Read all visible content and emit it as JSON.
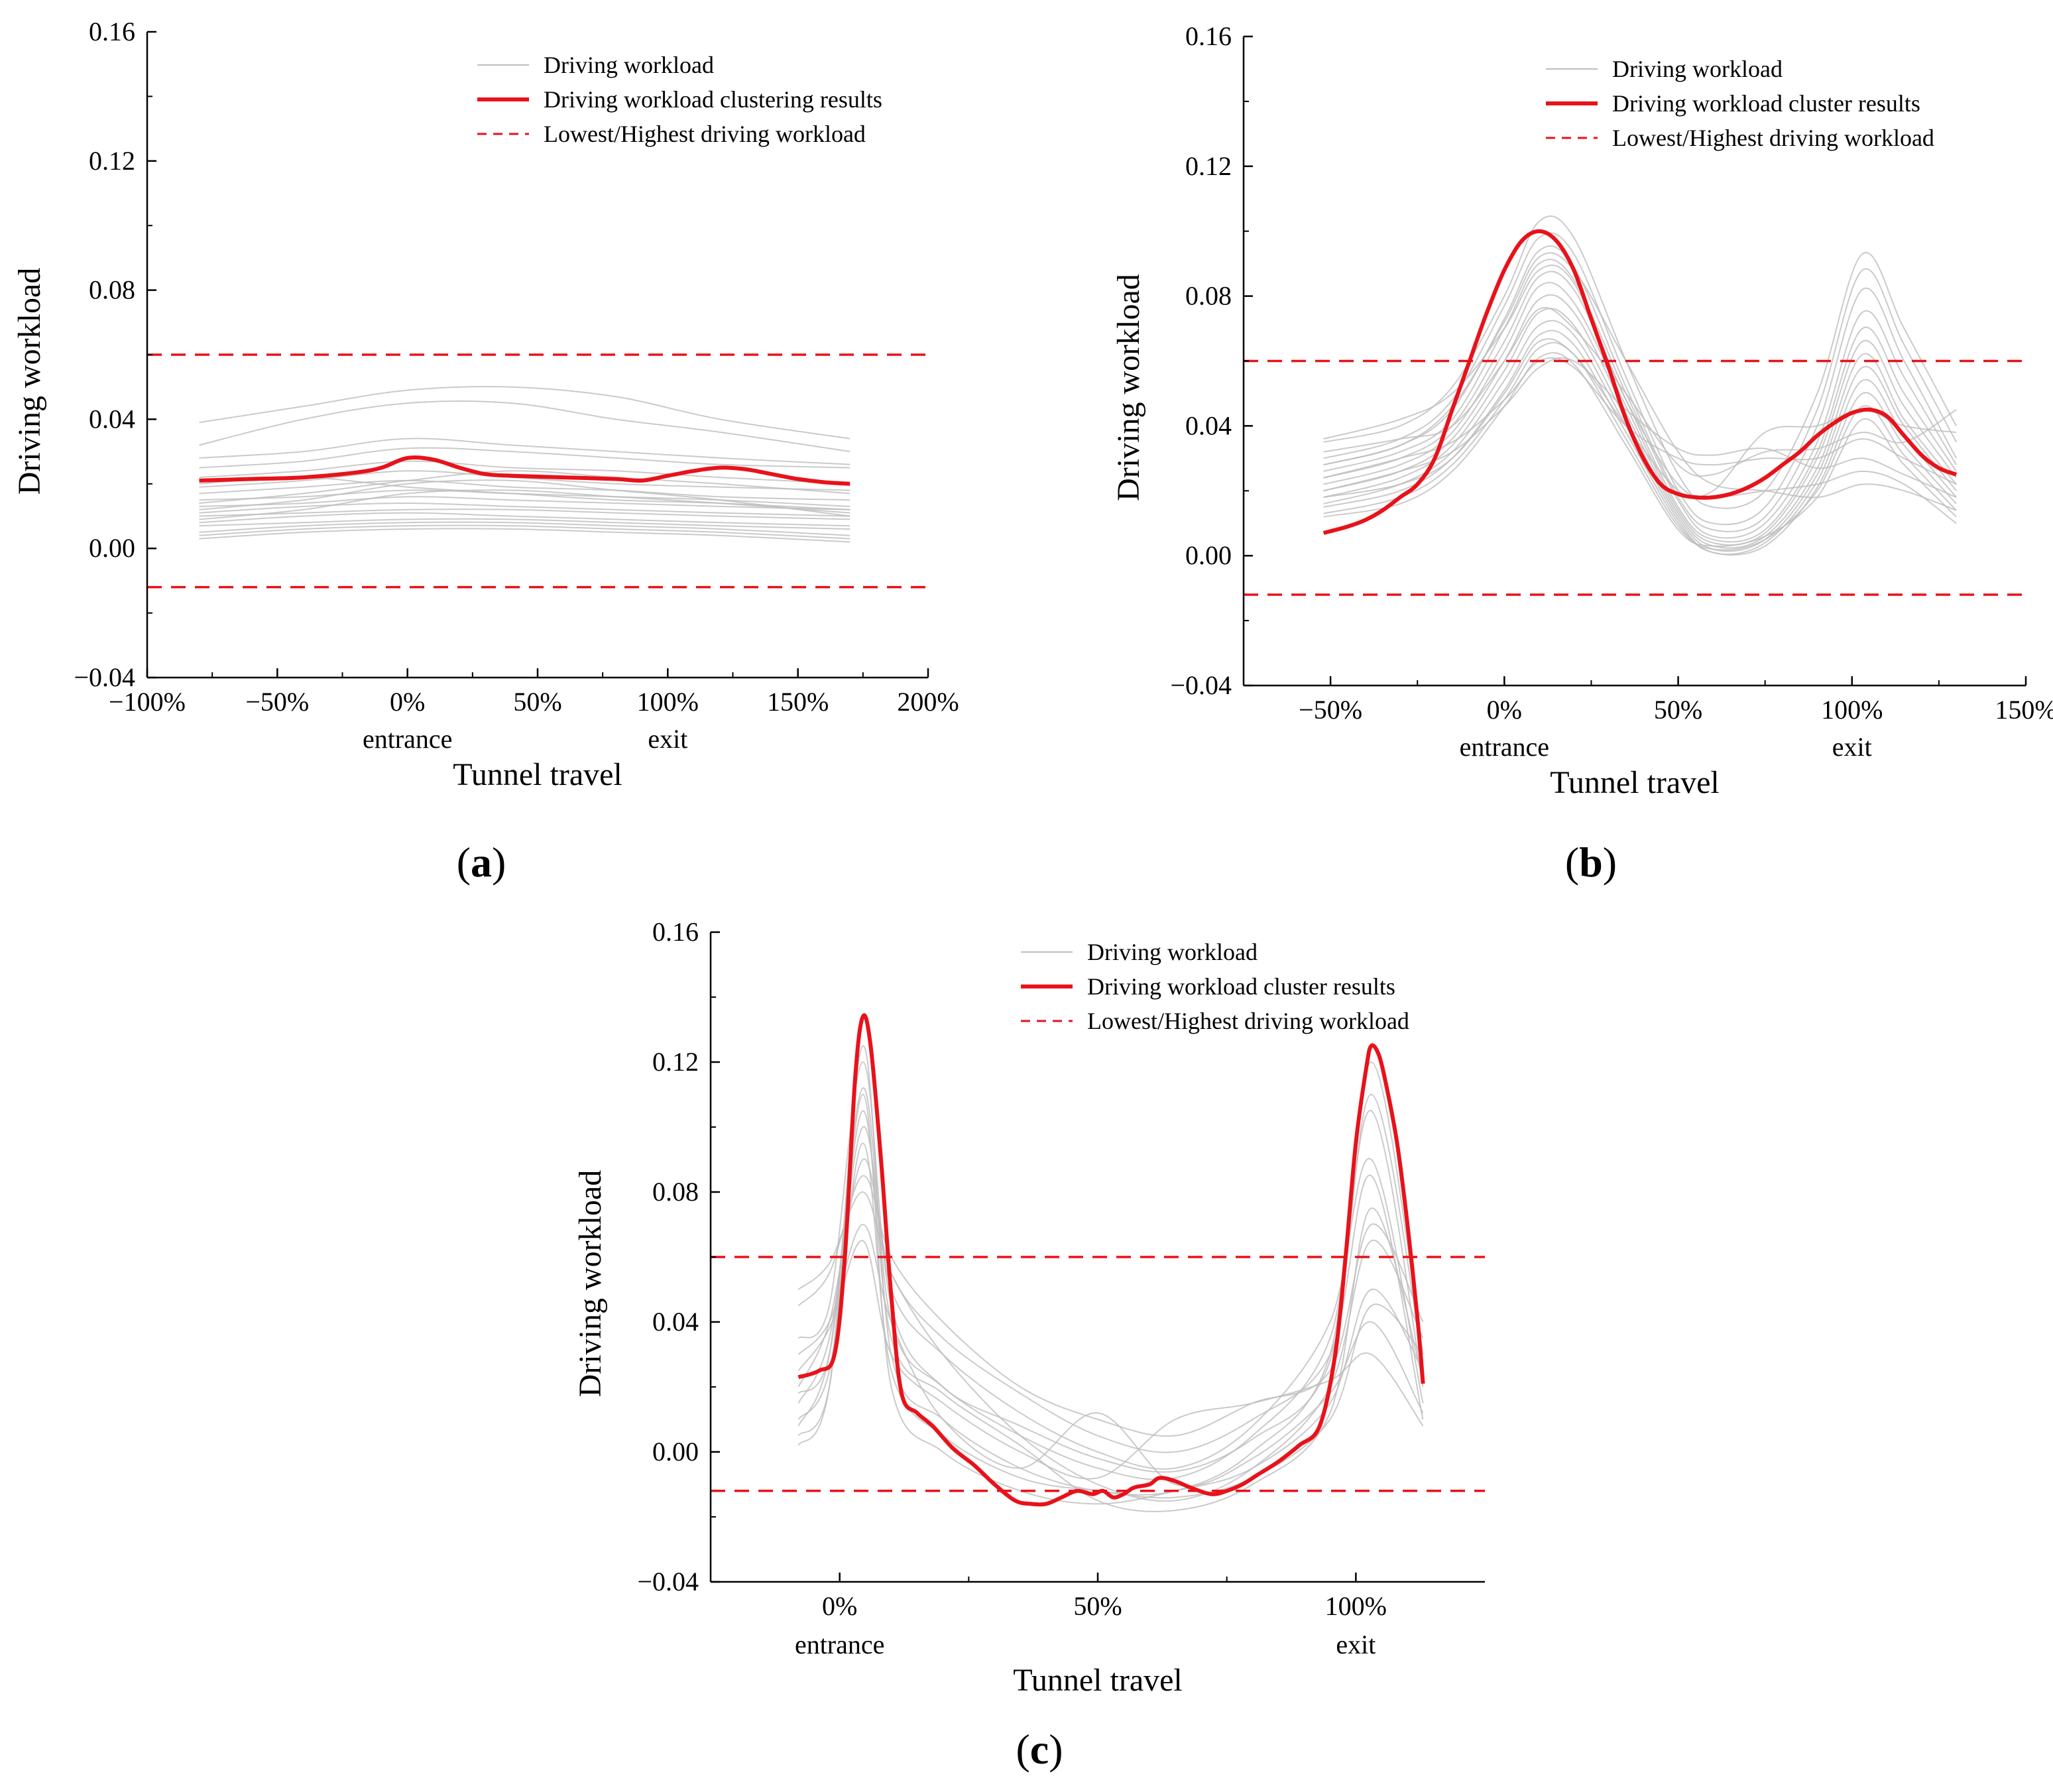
{
  "figure": {
    "panels": [
      {
        "prefix": "(",
        "letter": "a",
        "suffix": ")"
      },
      {
        "prefix": "(",
        "letter": "b",
        "suffix": ")"
      },
      {
        "prefix": "(",
        "letter": "c",
        "suffix": ")"
      }
    ]
  },
  "colors": {
    "cluster": "#e8121a",
    "threshold": "#e8121a",
    "individual": "#bdbdbd",
    "axis": "#000000"
  },
  "chart_data": [
    {
      "type": "line",
      "panel": "a",
      "xlabel": "Tunnel travel",
      "ylabel": "Driving workload",
      "xlim": [
        -100,
        200
      ],
      "ylim": [
        -0.04,
        0.16
      ],
      "xticks": [
        -100,
        -50,
        0,
        50,
        100,
        150,
        200
      ],
      "xtick_labels": [
        "−100%",
        "−50%",
        "0%",
        "50%",
        "100%",
        "150%",
        "200%"
      ],
      "yticks": [
        -0.04,
        0.0,
        0.04,
        0.08,
        0.12,
        0.16
      ],
      "ytick_labels": [
        "−0.04",
        "0.00",
        "0.04",
        "0.08",
        "0.12",
        "0.16"
      ],
      "annotations": [
        {
          "x": 0,
          "text": "entrance"
        },
        {
          "x": 100,
          "text": "exit"
        }
      ],
      "legend": [
        "Driving workload",
        "Driving workload clustering results",
        "Lowest/Highest driving workload"
      ],
      "thresholds": {
        "high": 0.06,
        "low": -0.012
      },
      "cluster": {
        "name": "Driving workload clustering results",
        "x": [
          -80,
          -60,
          -40,
          -20,
          -10,
          0,
          10,
          20,
          30,
          40,
          60,
          80,
          90,
          100,
          110,
          120,
          130,
          140,
          150,
          160,
          170
        ],
        "y": [
          0.021,
          0.0215,
          0.022,
          0.0235,
          0.025,
          0.028,
          0.0275,
          0.025,
          0.023,
          0.0225,
          0.022,
          0.0215,
          0.021,
          0.0225,
          0.024,
          0.025,
          0.0245,
          0.023,
          0.0215,
          0.0205,
          0.02
        ]
      },
      "individual": {
        "name": "Driving workload",
        "x": [
          -80,
          -40,
          0,
          40,
          80,
          120,
          170
        ],
        "y": [
          [
            0.039,
            0.044,
            0.049,
            0.05,
            0.047,
            0.04,
            0.034
          ],
          [
            0.032,
            0.04,
            0.045,
            0.045,
            0.04,
            0.036,
            0.03
          ],
          [
            0.028,
            0.03,
            0.034,
            0.032,
            0.03,
            0.028,
            0.026
          ],
          [
            0.025,
            0.027,
            0.031,
            0.03,
            0.028,
            0.026,
            0.025
          ],
          [
            0.022,
            0.024,
            0.027,
            0.025,
            0.024,
            0.022,
            0.02
          ],
          [
            0.019,
            0.021,
            0.024,
            0.022,
            0.02,
            0.019,
            0.018
          ],
          [
            0.017,
            0.019,
            0.021,
            0.019,
            0.018,
            0.016,
            0.015
          ],
          [
            0.015,
            0.016,
            0.018,
            0.017,
            0.016,
            0.015,
            0.013
          ],
          [
            0.013,
            0.014,
            0.016,
            0.015,
            0.014,
            0.013,
            0.012
          ],
          [
            0.011,
            0.013,
            0.014,
            0.013,
            0.012,
            0.011,
            0.01
          ],
          [
            0.01,
            0.011,
            0.012,
            0.012,
            0.011,
            0.01,
            0.009
          ],
          [
            0.008,
            0.01,
            0.011,
            0.01,
            0.009,
            0.008,
            0.007
          ],
          [
            0.007,
            0.008,
            0.009,
            0.009,
            0.008,
            0.007,
            0.006
          ],
          [
            0.005,
            0.007,
            0.008,
            0.008,
            0.007,
            0.006,
            0.004
          ],
          [
            0.004,
            0.006,
            0.007,
            0.007,
            0.006,
            0.005,
            0.003
          ],
          [
            0.003,
            0.005,
            0.006,
            0.006,
            0.005,
            0.004,
            0.002
          ],
          [
            0.012,
            0.015,
            0.02,
            0.021,
            0.018,
            0.015,
            0.01
          ],
          [
            0.009,
            0.012,
            0.017,
            0.018,
            0.016,
            0.014,
            0.011
          ],
          [
            0.02,
            0.022,
            0.019,
            0.017,
            0.015,
            0.014,
            0.012
          ],
          [
            0.014,
            0.017,
            0.021,
            0.024,
            0.022,
            0.02,
            0.017
          ]
        ]
      }
    },
    {
      "type": "line",
      "panel": "b",
      "xlabel": "Tunnel travel",
      "ylabel": "Driving workload",
      "xlim": [
        -75,
        150
      ],
      "ylim": [
        -0.04,
        0.16
      ],
      "xticks": [
        -50,
        0,
        50,
        100,
        150
      ],
      "xtick_labels": [
        "−50%",
        "0%",
        "50%",
        "100%",
        "150%"
      ],
      "yticks": [
        -0.04,
        0.0,
        0.04,
        0.08,
        0.12,
        0.16
      ],
      "ytick_labels": [
        "−0.04",
        "0.00",
        "0.04",
        "0.08",
        "0.12",
        "0.16"
      ],
      "annotations": [
        {
          "x": 0,
          "text": "entrance"
        },
        {
          "x": 100,
          "text": "exit"
        }
      ],
      "legend": [
        "Driving workload",
        "Driving workload cluster results",
        "Lowest/Highest driving workload"
      ],
      "thresholds": {
        "high": 0.06,
        "low": -0.012
      },
      "cluster": {
        "name": "Driving workload cluster results",
        "x": [
          -52,
          -45,
          -40,
          -35,
          -30,
          -25,
          -20,
          -15,
          -10,
          -5,
          0,
          5,
          10,
          15,
          20,
          25,
          30,
          35,
          40,
          45,
          50,
          55,
          60,
          65,
          70,
          75,
          80,
          85,
          90,
          95,
          100,
          105,
          110,
          115,
          120,
          125,
          130
        ],
        "y": [
          0.007,
          0.009,
          0.011,
          0.014,
          0.018,
          0.022,
          0.03,
          0.045,
          0.06,
          0.075,
          0.088,
          0.097,
          0.1,
          0.097,
          0.088,
          0.073,
          0.058,
          0.042,
          0.03,
          0.022,
          0.019,
          0.018,
          0.018,
          0.019,
          0.021,
          0.024,
          0.028,
          0.032,
          0.037,
          0.041,
          0.044,
          0.045,
          0.043,
          0.037,
          0.031,
          0.027,
          0.025
        ]
      },
      "individual": {
        "name": "Driving workload",
        "x": [
          -52,
          -30,
          -15,
          0,
          10,
          20,
          35,
          50,
          60,
          75,
          90,
          103,
          115,
          130
        ],
        "y": [
          [
            0.035,
            0.04,
            0.052,
            0.08,
            0.103,
            0.098,
            0.06,
            0.025,
            0.015,
            0.02,
            0.05,
            0.093,
            0.07,
            0.04
          ],
          [
            0.03,
            0.036,
            0.048,
            0.077,
            0.098,
            0.093,
            0.055,
            0.02,
            0.01,
            0.015,
            0.045,
            0.088,
            0.065,
            0.035
          ],
          [
            0.028,
            0.034,
            0.045,
            0.073,
            0.094,
            0.089,
            0.052,
            0.018,
            0.008,
            0.012,
            0.04,
            0.082,
            0.06,
            0.03
          ],
          [
            0.026,
            0.032,
            0.042,
            0.07,
            0.09,
            0.085,
            0.05,
            0.017,
            0.006,
            0.01,
            0.035,
            0.075,
            0.055,
            0.028
          ],
          [
            0.024,
            0.03,
            0.04,
            0.066,
            0.086,
            0.082,
            0.048,
            0.015,
            0.005,
            0.008,
            0.032,
            0.07,
            0.05,
            0.026
          ],
          [
            0.022,
            0.028,
            0.038,
            0.063,
            0.083,
            0.078,
            0.046,
            0.014,
            0.004,
            0.007,
            0.03,
            0.066,
            0.046,
            0.024
          ],
          [
            0.02,
            0.026,
            0.036,
            0.06,
            0.079,
            0.075,
            0.044,
            0.013,
            0.003,
            0.006,
            0.027,
            0.062,
            0.042,
            0.022
          ],
          [
            0.018,
            0.024,
            0.034,
            0.057,
            0.075,
            0.071,
            0.042,
            0.012,
            0.002,
            0.005,
            0.025,
            0.058,
            0.04,
            0.02
          ],
          [
            0.016,
            0.022,
            0.032,
            0.054,
            0.071,
            0.068,
            0.04,
            0.011,
            0.001,
            0.004,
            0.023,
            0.054,
            0.037,
            0.018
          ],
          [
            0.015,
            0.02,
            0.03,
            0.051,
            0.068,
            0.065,
            0.038,
            0.01,
            0.001,
            0.003,
            0.021,
            0.05,
            0.034,
            0.016
          ],
          [
            0.013,
            0.018,
            0.028,
            0.048,
            0.064,
            0.062,
            0.036,
            0.009,
            0.002,
            0.005,
            0.02,
            0.046,
            0.031,
            0.014
          ],
          [
            0.012,
            0.016,
            0.026,
            0.046,
            0.061,
            0.059,
            0.034,
            0.008,
            0.003,
            0.006,
            0.018,
            0.042,
            0.028,
            0.012
          ],
          [
            0.024,
            0.03,
            0.035,
            0.048,
            0.06,
            0.058,
            0.04,
            0.03,
            0.028,
            0.03,
            0.03,
            0.036,
            0.03,
            0.022
          ],
          [
            0.02,
            0.026,
            0.032,
            0.046,
            0.058,
            0.06,
            0.045,
            0.033,
            0.031,
            0.033,
            0.027,
            0.03,
            0.025,
            0.018
          ],
          [
            0.032,
            0.036,
            0.04,
            0.06,
            0.076,
            0.07,
            0.05,
            0.028,
            0.025,
            0.032,
            0.033,
            0.038,
            0.035,
            0.045
          ],
          [
            0.018,
            0.022,
            0.03,
            0.05,
            0.066,
            0.062,
            0.04,
            0.02,
            0.018,
            0.02,
            0.022,
            0.026,
            0.022,
            0.01
          ],
          [
            0.036,
            0.042,
            0.05,
            0.07,
            0.088,
            0.084,
            0.048,
            0.022,
            0.02,
            0.038,
            0.04,
            0.045,
            0.04,
            0.038
          ],
          [
            0.028,
            0.034,
            0.046,
            0.072,
            0.092,
            0.088,
            0.06,
            0.032,
            0.022,
            0.02,
            0.018,
            0.022,
            0.02,
            0.014
          ]
        ]
      }
    },
    {
      "type": "line",
      "panel": "c",
      "xlabel": "Tunnel travel",
      "ylabel": "Driving workload",
      "xlim": [
        -25,
        125
      ],
      "ylim": [
        -0.04,
        0.16
      ],
      "xticks": [
        0,
        50,
        100
      ],
      "xtick_labels": [
        "0%",
        "50%",
        "100%"
      ],
      "yticks": [
        -0.04,
        0.0,
        0.04,
        0.08,
        0.12,
        0.16
      ],
      "ytick_labels": [
        "−0.04",
        "0.00",
        "0.04",
        "0.08",
        "0.12",
        "0.16"
      ],
      "annotations": [
        {
          "x": 0,
          "text": "entrance"
        },
        {
          "x": 100,
          "text": "exit"
        }
      ],
      "legend": [
        "Driving workload",
        "Driving workload cluster results",
        "Lowest/Highest driving workload"
      ],
      "thresholds": {
        "high": 0.06,
        "low": -0.012
      },
      "cluster": {
        "name": "Driving workload cluster results",
        "x": [
          -8,
          -4,
          -1,
          1,
          3,
          4.5,
          6,
          8,
          10,
          12,
          15,
          18,
          22,
          26,
          30,
          34,
          37,
          40,
          43,
          46,
          49,
          51,
          53,
          55,
          57,
          60,
          62,
          65,
          68,
          72,
          75,
          78,
          81,
          85,
          89,
          93,
          96,
          98,
          100,
          102,
          103,
          104.5,
          106,
          108,
          110,
          112,
          113
        ],
        "y": [
          0.023,
          0.025,
          0.03,
          0.06,
          0.115,
          0.134,
          0.125,
          0.09,
          0.048,
          0.018,
          0.012,
          0.008,
          0.001,
          -0.004,
          -0.01,
          -0.015,
          -0.016,
          -0.016,
          -0.014,
          -0.012,
          -0.013,
          -0.012,
          -0.014,
          -0.013,
          -0.011,
          -0.01,
          -0.008,
          -0.009,
          -0.011,
          -0.013,
          -0.012,
          -0.01,
          -0.007,
          -0.003,
          0.002,
          0.008,
          0.03,
          0.06,
          0.095,
          0.118,
          0.125,
          0.122,
          0.112,
          0.095,
          0.07,
          0.04,
          0.021
        ]
      },
      "individual": {
        "name": "Driving workload",
        "x": [
          -8,
          -2,
          4.5,
          10,
          20,
          35,
          50,
          65,
          80,
          95,
          103,
          113
        ],
        "y": [
          [
            0.002,
            0.02,
            0.125,
            0.03,
            0.01,
            -0.005,
            -0.012,
            -0.012,
            0.0,
            0.03,
            0.12,
            0.03
          ],
          [
            0.008,
            0.03,
            0.112,
            0.04,
            0.02,
            0.005,
            -0.005,
            -0.008,
            0.005,
            0.035,
            0.105,
            0.02
          ],
          [
            0.015,
            0.035,
            0.1,
            0.05,
            0.03,
            0.012,
            0.0,
            -0.005,
            0.008,
            0.04,
            0.09,
            0.015
          ],
          [
            0.02,
            0.04,
            0.09,
            0.055,
            0.035,
            0.018,
            0.005,
            0.0,
            0.01,
            0.03,
            0.085,
            0.01
          ],
          [
            0.045,
            0.055,
            0.085,
            0.06,
            0.04,
            0.02,
            0.01,
            0.005,
            0.015,
            0.025,
            0.07,
            0.04
          ],
          [
            0.05,
            0.058,
            0.08,
            0.055,
            0.03,
            0.005,
            -0.01,
            -0.015,
            -0.005,
            0.02,
            0.065,
            0.035
          ],
          [
            0.005,
            0.02,
            0.11,
            0.02,
            0.0,
            -0.012,
            -0.016,
            -0.012,
            -0.005,
            0.015,
            0.05,
            0.025
          ],
          [
            0.01,
            0.025,
            0.095,
            0.025,
            0.005,
            -0.008,
            -0.012,
            -0.014,
            -0.008,
            0.01,
            0.045,
            0.03
          ],
          [
            0.03,
            0.04,
            0.07,
            0.04,
            0.01,
            -0.005,
            0.012,
            -0.01,
            -0.002,
            0.018,
            0.04,
            0.012
          ],
          [
            0.025,
            0.038,
            0.065,
            0.03,
            0.015,
            0.0,
            -0.008,
            0.01,
            0.015,
            0.022,
            0.03,
            0.008
          ],
          [
            0.018,
            0.03,
            0.105,
            0.035,
            0.018,
            0.002,
            -0.015,
            -0.018,
            -0.01,
            0.012,
            0.075,
            0.022
          ],
          [
            0.035,
            0.045,
            0.12,
            0.045,
            0.02,
            0.008,
            -0.002,
            -0.006,
            0.004,
            0.028,
            0.11,
            0.028
          ]
        ]
      }
    }
  ]
}
